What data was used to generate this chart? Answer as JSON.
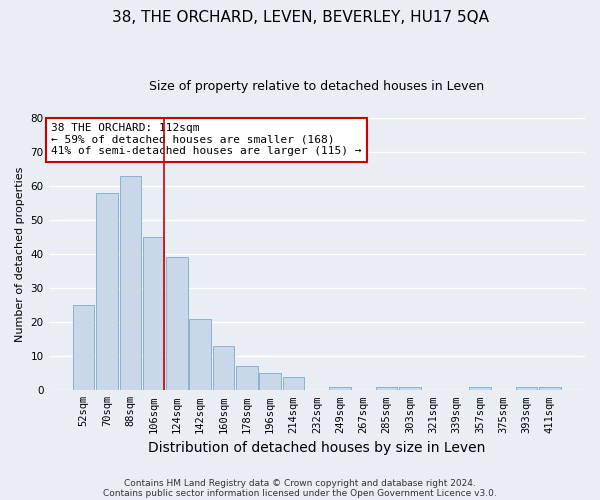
{
  "title": "38, THE ORCHARD, LEVEN, BEVERLEY, HU17 5QA",
  "subtitle": "Size of property relative to detached houses in Leven",
  "xlabel": "Distribution of detached houses by size in Leven",
  "ylabel": "Number of detached properties",
  "categories": [
    "52sqm",
    "70sqm",
    "88sqm",
    "106sqm",
    "124sqm",
    "142sqm",
    "160sqm",
    "178sqm",
    "196sqm",
    "214sqm",
    "232sqm",
    "249sqm",
    "267sqm",
    "285sqm",
    "303sqm",
    "321sqm",
    "339sqm",
    "357sqm",
    "375sqm",
    "393sqm",
    "411sqm"
  ],
  "values": [
    25,
    58,
    63,
    45,
    39,
    21,
    13,
    7,
    5,
    4,
    0,
    1,
    0,
    1,
    1,
    0,
    0,
    1,
    0,
    1,
    1
  ],
  "bar_color": "#c8d8e8",
  "bar_edge_color": "#7aaac8",
  "marker_line_color": "#cc0000",
  "annotation_line1": "38 THE ORCHARD: 112sqm",
  "annotation_line2": "← 59% of detached houses are smaller (168)",
  "annotation_line3": "41% of semi-detached houses are larger (115) →",
  "annotation_box_facecolor": "white",
  "annotation_box_edgecolor": "#cc0000",
  "ylim": [
    0,
    80
  ],
  "yticks": [
    0,
    10,
    20,
    30,
    40,
    50,
    60,
    70,
    80
  ],
  "footnote_line1": "Contains HM Land Registry data © Crown copyright and database right 2024.",
  "footnote_line2": "Contains public sector information licensed under the Open Government Licence v3.0.",
  "background_color": "#e8eef4",
  "plot_background_color": "#e8eef4",
  "grid_color": "#ffffff",
  "title_fontsize": 11,
  "subtitle_fontsize": 9,
  "xlabel_fontsize": 10,
  "ylabel_fontsize": 8,
  "tick_fontsize": 7.5,
  "annotation_fontsize": 8,
  "footnote_fontsize": 6.5
}
